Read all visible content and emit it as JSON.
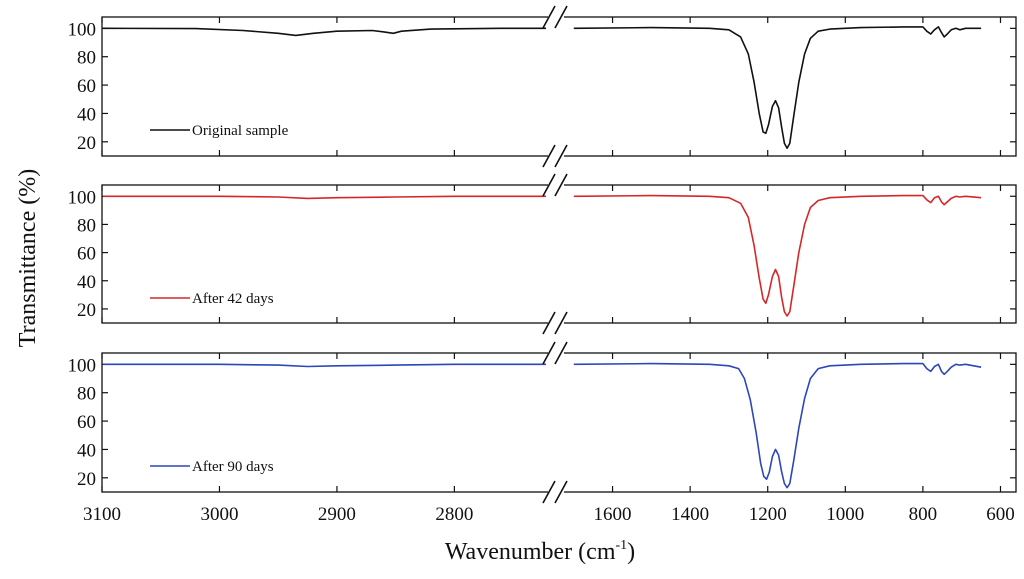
{
  "chart_data": {
    "type": "line",
    "title": "",
    "ylabel": "Transmittance (%)",
    "xlabel_main": "Wavenumber (cm",
    "xlabel_sup": "-1",
    "xlabel_close": ")",
    "ylim": [
      10,
      108
    ],
    "x_segments": [
      {
        "range": [
          3100,
          2722
        ],
        "ticks": [
          3100,
          3000,
          2900,
          2800
        ]
      },
      {
        "range": [
          1720,
          560
        ],
        "ticks": [
          1600,
          1400,
          1200,
          1000,
          800,
          600
        ]
      }
    ],
    "x_tick_labels": [
      "3100",
      "3000",
      "2900",
      "2800",
      "1600",
      "1400",
      "1200",
      "1000",
      "800",
      "600"
    ],
    "y_ticks": [
      20,
      40,
      60,
      80,
      100
    ],
    "y_tick_labels": [
      "20",
      "40",
      "60",
      "80",
      "100"
    ],
    "series": [
      {
        "name": "Original sample",
        "color": "#111111",
        "points": [
          [
            3100,
            100
          ],
          [
            3020,
            99.8
          ],
          [
            2980,
            98.5
          ],
          [
            2950,
            96.5
          ],
          [
            2935,
            95
          ],
          [
            2920,
            96.5
          ],
          [
            2900,
            98
          ],
          [
            2870,
            98.5
          ],
          [
            2860,
            97.5
          ],
          [
            2852,
            96.5
          ],
          [
            2845,
            98
          ],
          [
            2820,
            99.5
          ],
          [
            2760,
            100
          ],
          [
            2722,
            100
          ],
          [
            1700,
            100
          ],
          [
            1500,
            100.5
          ],
          [
            1350,
            100
          ],
          [
            1300,
            99
          ],
          [
            1270,
            94
          ],
          [
            1250,
            82
          ],
          [
            1235,
            62
          ],
          [
            1222,
            40
          ],
          [
            1212,
            27
          ],
          [
            1205,
            26
          ],
          [
            1198,
            32
          ],
          [
            1188,
            45
          ],
          [
            1180,
            49
          ],
          [
            1172,
            44
          ],
          [
            1164,
            30
          ],
          [
            1157,
            19
          ],
          [
            1150,
            15.5
          ],
          [
            1143,
            19
          ],
          [
            1133,
            38
          ],
          [
            1120,
            62
          ],
          [
            1105,
            82
          ],
          [
            1090,
            93
          ],
          [
            1070,
            98
          ],
          [
            1040,
            99.5
          ],
          [
            960,
            100.5
          ],
          [
            850,
            101
          ],
          [
            800,
            101
          ],
          [
            790,
            98
          ],
          [
            780,
            96
          ],
          [
            770,
            99
          ],
          [
            760,
            101
          ],
          [
            752,
            97
          ],
          [
            745,
            94
          ],
          [
            737,
            96
          ],
          [
            727,
            99
          ],
          [
            715,
            100
          ],
          [
            705,
            99
          ],
          [
            690,
            100
          ],
          [
            650,
            100
          ]
        ]
      },
      {
        "name": "After 42 days",
        "color": "#d62728",
        "points": [
          [
            3100,
            100
          ],
          [
            3000,
            100
          ],
          [
            2950,
            99.5
          ],
          [
            2925,
            98.5
          ],
          [
            2900,
            99
          ],
          [
            2850,
            99.5
          ],
          [
            2800,
            100
          ],
          [
            2722,
            100
          ],
          [
            1700,
            100
          ],
          [
            1500,
            100.5
          ],
          [
            1350,
            100
          ],
          [
            1300,
            99
          ],
          [
            1270,
            95
          ],
          [
            1250,
            85
          ],
          [
            1235,
            65
          ],
          [
            1222,
            42
          ],
          [
            1212,
            27
          ],
          [
            1205,
            24
          ],
          [
            1198,
            30
          ],
          [
            1188,
            43
          ],
          [
            1180,
            48
          ],
          [
            1172,
            43
          ],
          [
            1164,
            28
          ],
          [
            1157,
            18
          ],
          [
            1150,
            15
          ],
          [
            1143,
            18
          ],
          [
            1133,
            36
          ],
          [
            1120,
            60
          ],
          [
            1105,
            80
          ],
          [
            1090,
            92
          ],
          [
            1070,
            97
          ],
          [
            1040,
            99
          ],
          [
            960,
            100
          ],
          [
            850,
            100.5
          ],
          [
            800,
            100.5
          ],
          [
            790,
            97.5
          ],
          [
            780,
            95.5
          ],
          [
            770,
            99
          ],
          [
            760,
            100
          ],
          [
            752,
            96
          ],
          [
            745,
            94
          ],
          [
            737,
            96
          ],
          [
            727,
            98.5
          ],
          [
            715,
            100
          ],
          [
            705,
            99.5
          ],
          [
            690,
            100
          ],
          [
            650,
            99
          ]
        ]
      },
      {
        "name": "After 90 days",
        "color": "#2b47b9",
        "points": [
          [
            3100,
            100
          ],
          [
            3000,
            100
          ],
          [
            2950,
            99.5
          ],
          [
            2925,
            98.5
          ],
          [
            2900,
            99
          ],
          [
            2850,
            99.5
          ],
          [
            2800,
            100
          ],
          [
            2722,
            100
          ],
          [
            1700,
            100
          ],
          [
            1500,
            100.5
          ],
          [
            1350,
            100
          ],
          [
            1300,
            99
          ],
          [
            1275,
            97
          ],
          [
            1260,
            90
          ],
          [
            1245,
            75
          ],
          [
            1230,
            52
          ],
          [
            1218,
            30
          ],
          [
            1210,
            21
          ],
          [
            1203,
            19
          ],
          [
            1196,
            24
          ],
          [
            1188,
            35
          ],
          [
            1180,
            40
          ],
          [
            1172,
            36
          ],
          [
            1164,
            24
          ],
          [
            1157,
            16
          ],
          [
            1150,
            13
          ],
          [
            1143,
            16
          ],
          [
            1133,
            32
          ],
          [
            1120,
            55
          ],
          [
            1105,
            76
          ],
          [
            1090,
            90
          ],
          [
            1070,
            97
          ],
          [
            1040,
            99
          ],
          [
            960,
            100
          ],
          [
            850,
            100.5
          ],
          [
            800,
            100.5
          ],
          [
            790,
            97
          ],
          [
            780,
            95
          ],
          [
            770,
            98.5
          ],
          [
            760,
            100
          ],
          [
            752,
            95
          ],
          [
            745,
            93
          ],
          [
            737,
            95
          ],
          [
            727,
            98
          ],
          [
            715,
            100
          ],
          [
            705,
            99.5
          ],
          [
            690,
            100
          ],
          [
            650,
            98
          ]
        ]
      }
    ]
  }
}
